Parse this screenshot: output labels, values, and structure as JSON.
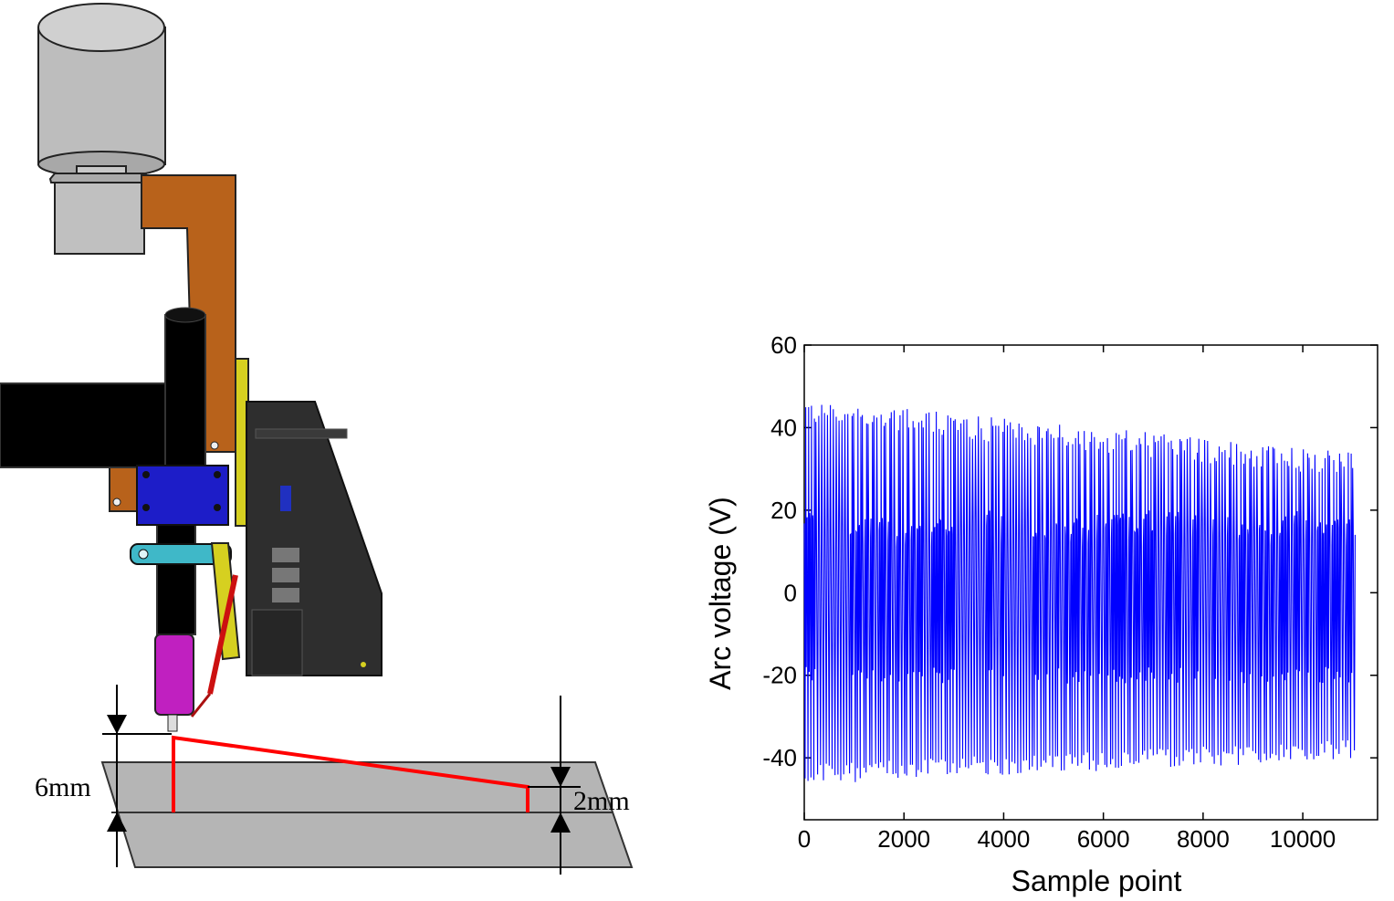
{
  "diagram": {
    "dim_left_label": "6mm",
    "dim_right_label": "2mm",
    "colors": {
      "motor": "#bdbdbd",
      "bracket": "#b8621b",
      "torch_body": "#000000",
      "clamp_blue": "#1d1dc8",
      "clamp_cyan": "#3fb8c8",
      "nozzle": "#c020c0",
      "wire_feeder": "#d6d020",
      "controller": "#2e2e2e",
      "plate": "#b5b5b5",
      "path_red": "#ff0000"
    }
  },
  "chart_data": {
    "type": "line",
    "xlabel": "Sample point",
    "ylabel": "Arc voltage (V)",
    "xlim": [
      0,
      11500
    ],
    "ylim": [
      -55,
      60
    ],
    "xticks": [
      "0",
      "2000",
      "4000",
      "6000",
      "8000",
      "10000"
    ],
    "yticks": [
      "60",
      "40",
      "20",
      "0",
      "-20",
      "-40"
    ],
    "grid": false,
    "series": [
      {
        "color": "#0000ff",
        "x_range": [
          0,
          11000
        ],
        "cycles": 190,
        "levels": {
          "high_peak_start": 44,
          "high_peak_end": 31,
          "low_peak_start": -44,
          "low_peak_end": -38,
          "upper_band": 16,
          "lower_band": -20
        }
      }
    ]
  }
}
